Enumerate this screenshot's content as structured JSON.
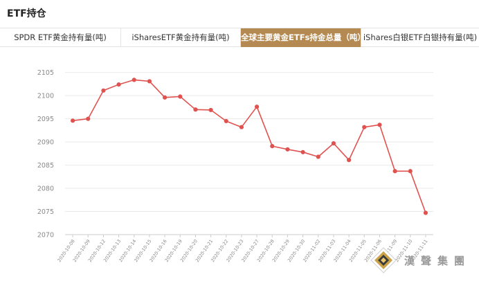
{
  "header": {
    "title": "ETF持仓"
  },
  "tabs": [
    {
      "label": "SPDR ETF黄金持有量(吨)",
      "active": false
    },
    {
      "label": "iSharesETF黄金持有量(吨)",
      "active": false
    },
    {
      "label": "全球主要黄金ETFs持金总量（吨）",
      "active": true
    },
    {
      "label": "iShares白银ETF白银持有量(吨)",
      "active": false
    }
  ],
  "colors": {
    "accent": "#b58a52",
    "line": "#e0524f",
    "grid": "#eaeaea",
    "axis_text": "#888888"
  },
  "watermark": {
    "text": "漢聲集團",
    "icon": "gold-diamond-logo"
  },
  "chart_data": {
    "type": "line",
    "title": "",
    "xlabel": "",
    "ylabel": "",
    "categories": [
      "2020-10-08",
      "2020-10-09",
      "2020-10-12",
      "2020-10-13",
      "2020-10-14",
      "2020-10-15",
      "2020-10-16",
      "2020-10-19",
      "2020-10-20",
      "2020-10-21",
      "2020-10-22",
      "2020-10-23",
      "2020-10-27",
      "2020-10-28",
      "2020-10-29",
      "2020-10-30",
      "2020-11-02",
      "2020-11-03",
      "2020-11-04",
      "2020-11-05",
      "2020-11-06",
      "2020-11-09",
      "2020-11-10",
      "2020-11-11"
    ],
    "series": [
      {
        "values": [
          2094.6,
          2095.0,
          2101.1,
          2102.4,
          2103.4,
          2103.1,
          2099.6,
          2099.8,
          2097.0,
          2096.9,
          2094.5,
          2093.2,
          2097.6,
          2089.1,
          2088.4,
          2087.8,
          2086.8,
          2089.7,
          2086.1,
          2093.2,
          2093.7,
          2083.7,
          2083.7,
          2074.7
        ]
      }
    ],
    "yticks": [
      2070,
      2075,
      2080,
      2085,
      2090,
      2095,
      2100,
      2105
    ],
    "ylim": [
      2070,
      2106
    ],
    "grid": true,
    "legend": "none"
  }
}
